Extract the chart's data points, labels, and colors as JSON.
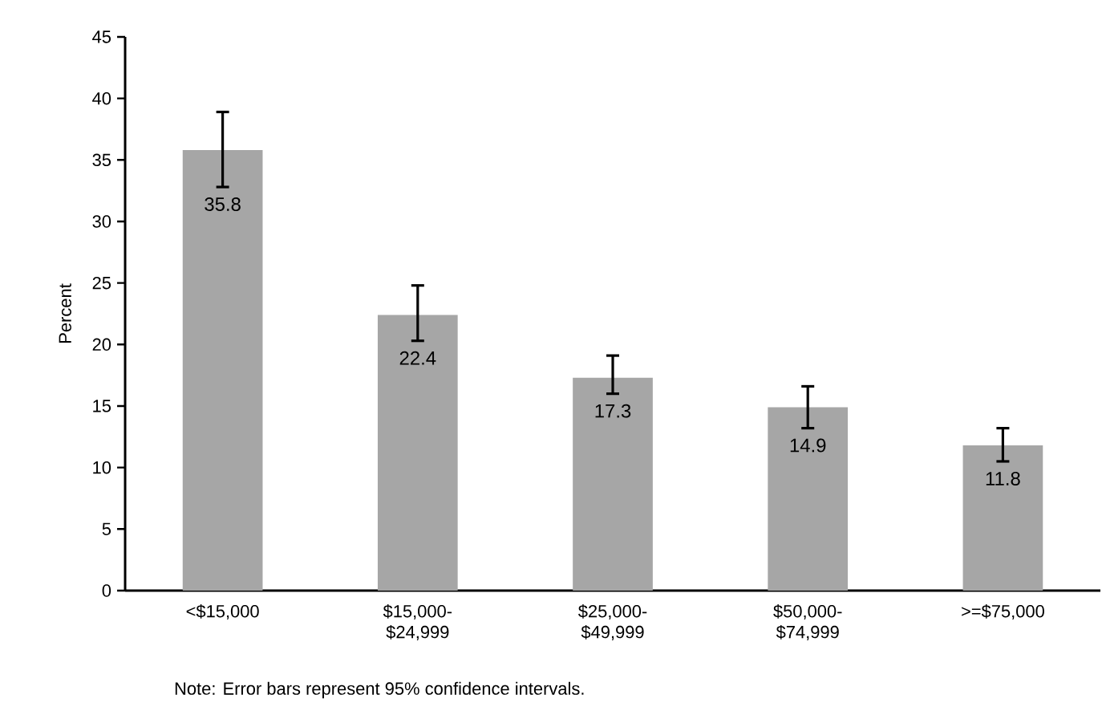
{
  "chart_data": {
    "type": "bar",
    "ylabel": "Percent",
    "categories": [
      "<$15,000",
      "$15,000- $24,999",
      "$25,000- $49,999",
      "$50,000- $74,999",
      ">=$75,000"
    ],
    "values": [
      35.8,
      22.4,
      17.3,
      14.9,
      11.8
    ],
    "errors": [
      [
        32.8,
        38.9
      ],
      [
        20.3,
        24.8
      ],
      [
        16.0,
        19.1
      ],
      [
        13.2,
        16.6
      ],
      [
        10.5,
        13.2
      ]
    ],
    "color": "#a6a6a6",
    "data_labels": true,
    "grid": false,
    "ylim": [
      0,
      45
    ],
    "yticks": [
      0,
      5,
      10,
      15,
      20,
      25,
      30,
      35,
      40,
      45
    ],
    "annotations": [
      "Note:  Error bars represent 95% confidence intervals."
    ]
  }
}
